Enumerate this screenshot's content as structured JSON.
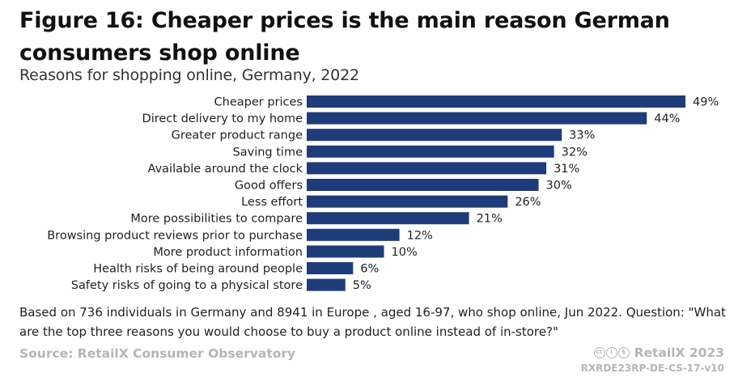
{
  "title": "Figure 16: Cheaper prices is the main reason German consumers shop online",
  "subtitle": "Reasons for shopping online, Germany, 2022",
  "note": "Based on 736 individuals in Germany and 8941 in Europe , aged 16-97, who shop online, Jun 2022. Question: \"What are the top three reasons you would choose to buy a product online instead of in-store?\"",
  "source": "Source: RetailX Consumer Observatory",
  "brand": "RetailX 2023",
  "code": "RXRDE23RP-DE-CS-17-v10",
  "cc_icons": [
    "cc-icon",
    "attribution-icon",
    "noncommercial-icon"
  ],
  "colors": {
    "bar": "#1f3c7a"
  },
  "chart_data": {
    "type": "bar",
    "orientation": "horizontal",
    "categories": [
      "Cheaper prices",
      "Direct delivery to my home",
      "Greater product range",
      "Saving time",
      "Available around the clock",
      "Good offers",
      "Less effort",
      "More possibilities to compare",
      "Browsing product reviews prior to purchase",
      "More product information",
      "Health risks of being around people",
      "Safety risks of going to a physical store"
    ],
    "values": [
      49,
      44,
      33,
      32,
      31,
      30,
      26,
      21,
      12,
      10,
      6,
      5
    ],
    "value_labels": [
      "49%",
      "44%",
      "33%",
      "32%",
      "31%",
      "30%",
      "26%",
      "21%",
      "12%",
      "10%",
      "6%",
      "5%"
    ],
    "xlim": [
      0,
      49
    ],
    "grid": false
  }
}
